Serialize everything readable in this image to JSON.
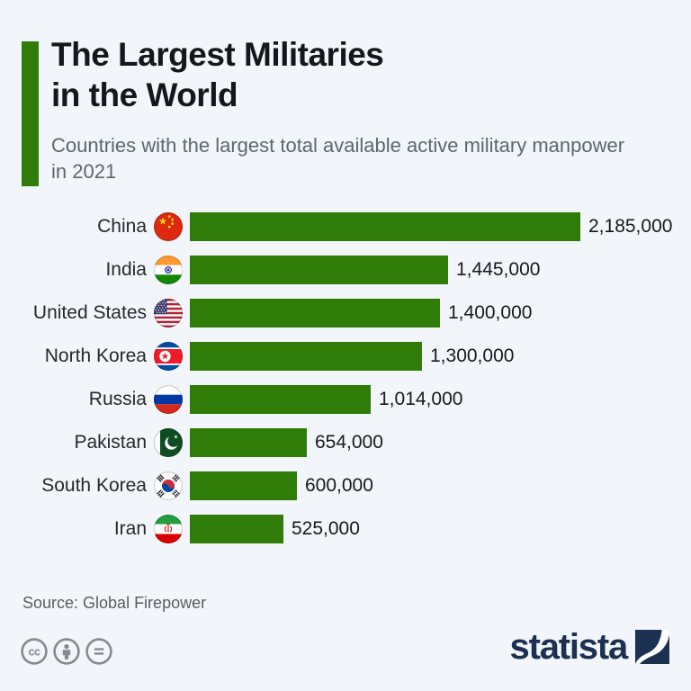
{
  "theme": {
    "background": "#f2f5f9",
    "bar_color": "#2f7d08",
    "accent_color": "#2f7d08",
    "brand_navy": "#1c3151",
    "title_color": "#15181b",
    "subtitle_color": "#5d6770",
    "label_color": "#26292c",
    "value_color": "#17191b",
    "source_color": "#565d63",
    "license_icon_color": "#848a90"
  },
  "header": {
    "title_line1": "The Largest Militaries",
    "title_line2": "in the World",
    "subtitle": "Countries with the largest total available active military manpower in 2021"
  },
  "chart_data": {
    "type": "bar",
    "orientation": "horizontal",
    "title": "The Largest Militaries in the World",
    "subtitle": "Countries with the largest total available active military manpower in 2021",
    "categories": [
      "China",
      "India",
      "United States",
      "North Korea",
      "Russia",
      "Pakistan",
      "South Korea",
      "Iran"
    ],
    "values": [
      2185000,
      1445000,
      1400000,
      1300000,
      1014000,
      654000,
      600000,
      525000
    ],
    "value_labels": [
      "2,185,000",
      "1,445,000",
      "1,400,000",
      "1,300,000",
      "1,014,000",
      "654,000",
      "600,000",
      "525,000"
    ],
    "flag_icons": [
      "china-flag-icon",
      "india-flag-icon",
      "united-states-flag-icon",
      "north-korea-flag-icon",
      "russia-flag-icon",
      "pakistan-flag-icon",
      "south-korea-flag-icon",
      "iran-flag-icon"
    ],
    "xlim": [
      0,
      2185000
    ],
    "bar_color": "#2f7d08",
    "grid": "off",
    "legend": "none",
    "value_label_position": "right-of-bar"
  },
  "footer": {
    "source": "Source: Global Firepower",
    "license_icons": [
      "cc-icon",
      "attribution-icon",
      "no-derivatives-icon"
    ],
    "brand": {
      "logo_text": "statista"
    }
  }
}
